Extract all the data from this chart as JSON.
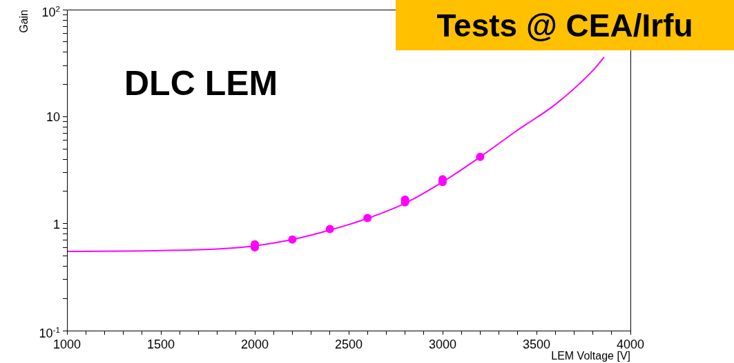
{
  "chart_data": {
    "type": "scatter",
    "xlabel": "LEM Voltage [V]",
    "ylabel": "Gain",
    "log": "y",
    "legend": false,
    "xlim": [
      1000,
      4000
    ],
    "ylim": [
      0.1,
      100
    ],
    "xticks": [
      1000,
      {
        "value": 1100,
        "label": null
      },
      {
        "value": 1200,
        "label": null
      },
      {
        "value": 1300,
        "label": null
      },
      {
        "value": 1400,
        "label": null
      },
      1500,
      {
        "value": 1600,
        "label": null
      },
      {
        "value": 1700,
        "label": null
      },
      {
        "value": 1800,
        "label": null
      },
      {
        "value": 1900,
        "label": null
      },
      2000,
      {
        "value": 2100,
        "label": null
      },
      {
        "value": 2200,
        "label": null
      },
      {
        "value": 2300,
        "label": null
      },
      {
        "value": 2400,
        "label": null
      },
      2500,
      {
        "value": 2600,
        "label": null
      },
      {
        "value": 2700,
        "label": null
      },
      {
        "value": 2800,
        "label": null
      },
      {
        "value": 2900,
        "label": null
      },
      3000,
      {
        "value": 3100,
        "label": null
      },
      {
        "value": 3200,
        "label": null
      },
      {
        "value": 3300,
        "label": null
      },
      {
        "value": 3400,
        "label": null
      },
      3500,
      {
        "value": 3600,
        "label": null
      },
      {
        "value": 3700,
        "label": null
      },
      {
        "value": 3800,
        "label": null
      },
      {
        "value": 3900,
        "label": null
      },
      4000
    ],
    "yticks": [
      {
        "value": 0.1,
        "label": "10$^{-1}$"
      },
      {
        "value": 0.2,
        "label": null
      },
      {
        "value": 0.3,
        "label": null
      },
      {
        "value": 0.4,
        "label": null
      },
      {
        "value": 0.5,
        "label": null
      },
      {
        "value": 0.6,
        "label": null
      },
      {
        "value": 0.7,
        "label": null
      },
      {
        "value": 0.8,
        "label": null
      },
      {
        "value": 0.9,
        "label": null
      },
      1,
      {
        "value": 2,
        "label": null
      },
      {
        "value": 3,
        "label": null
      },
      {
        "value": 4,
        "label": null
      },
      {
        "value": 5,
        "label": null
      },
      {
        "value": 6,
        "label": null
      },
      {
        "value": 7,
        "label": null
      },
      {
        "value": 8,
        "label": null
      },
      {
        "value": 9,
        "label": null
      },
      10,
      {
        "value": 20,
        "label": null
      },
      {
        "value": 30,
        "label": null
      },
      {
        "value": 40,
        "label": null
      },
      {
        "value": 50,
        "label": null
      },
      {
        "value": 60,
        "label": null
      },
      {
        "value": 70,
        "label": null
      },
      {
        "value": 80,
        "label": null
      },
      {
        "value": 90,
        "label": null
      },
      {
        "value": 100,
        "label": "10$^{2}$"
      }
    ],
    "series": [
      {
        "type": "line",
        "marker": "none",
        "color": "#ff00ff",
        "x": [
          1000,
          1500,
          1800,
          2000,
          2200,
          2400,
          2600,
          2800,
          3000,
          3200,
          3400,
          3600,
          3800,
          3860
        ],
        "values": [
          0.55,
          0.56,
          0.58,
          0.62,
          0.71,
          0.87,
          1.12,
          1.55,
          2.45,
          4.2,
          7.5,
          13,
          27,
          36
        ]
      },
      {
        "type": "scatter",
        "marker": "circle",
        "color": "#ff00ff",
        "x": [
          2000,
          2000,
          2200,
          2400,
          2600,
          2800,
          2800,
          3000,
          3000,
          3200
        ],
        "values": [
          0.6,
          0.64,
          0.71,
          0.89,
          1.13,
          1.58,
          1.68,
          2.45,
          2.6,
          4.2
        ]
      }
    ],
    "annotations": [
      {
        "text": "DLC LEM"
      },
      {
        "text": "Tests @ CEA/Irfu"
      }
    ]
  }
}
